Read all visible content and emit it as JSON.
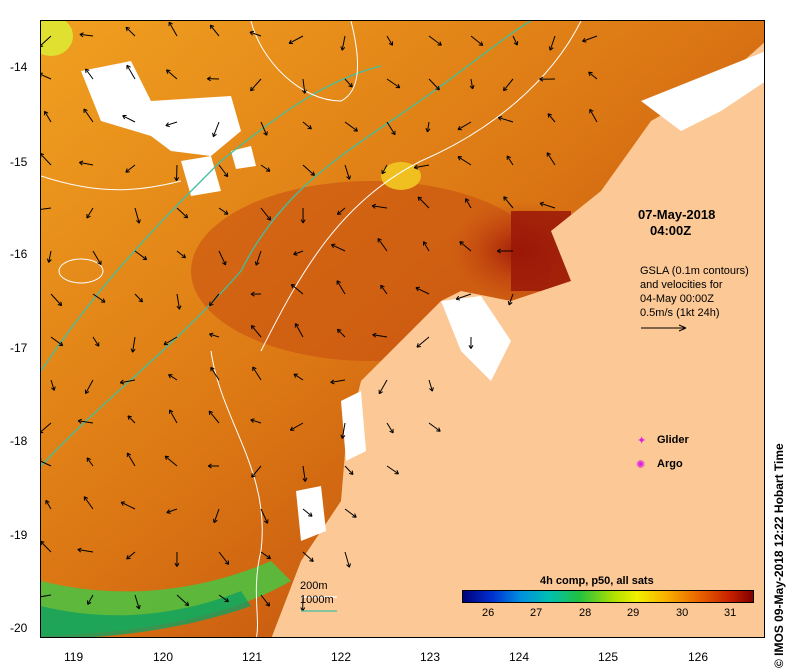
{
  "axes": {
    "y_ticks": [
      "-14",
      "-15",
      "-16",
      "-17",
      "-18",
      "-19",
      "-20"
    ],
    "x_ticks": [
      "119",
      "120",
      "121",
      "122",
      "123",
      "124",
      "125",
      "126"
    ]
  },
  "annotations": {
    "date": "07-May-2018",
    "time": "04:00Z",
    "gsla_line1": "GSLA (0.1m contours)",
    "gsla_line2": "and velocities for",
    "gsla_line3": "04-May 00:00Z",
    "gsla_line4": "0.5m/s (1kt 24h)",
    "glider": "Glider",
    "argo": "Argo",
    "depth_200": "200m",
    "depth_1000": "1000m",
    "credit": "© IMOS 09-May-2018 12:22 Hobart Time"
  },
  "colorbar": {
    "title": "4h comp, p50, all sats",
    "ticks": [
      "26",
      "27",
      "28",
      "29",
      "30",
      "31"
    ]
  },
  "colors": {
    "land": "#fbc896",
    "sea_warm": "#d86a10",
    "sea_hot": "#a01808",
    "sea_cool": "#f0a020",
    "shelf_200": "#40c0a0",
    "shelf_1000": "#ffffff"
  }
}
